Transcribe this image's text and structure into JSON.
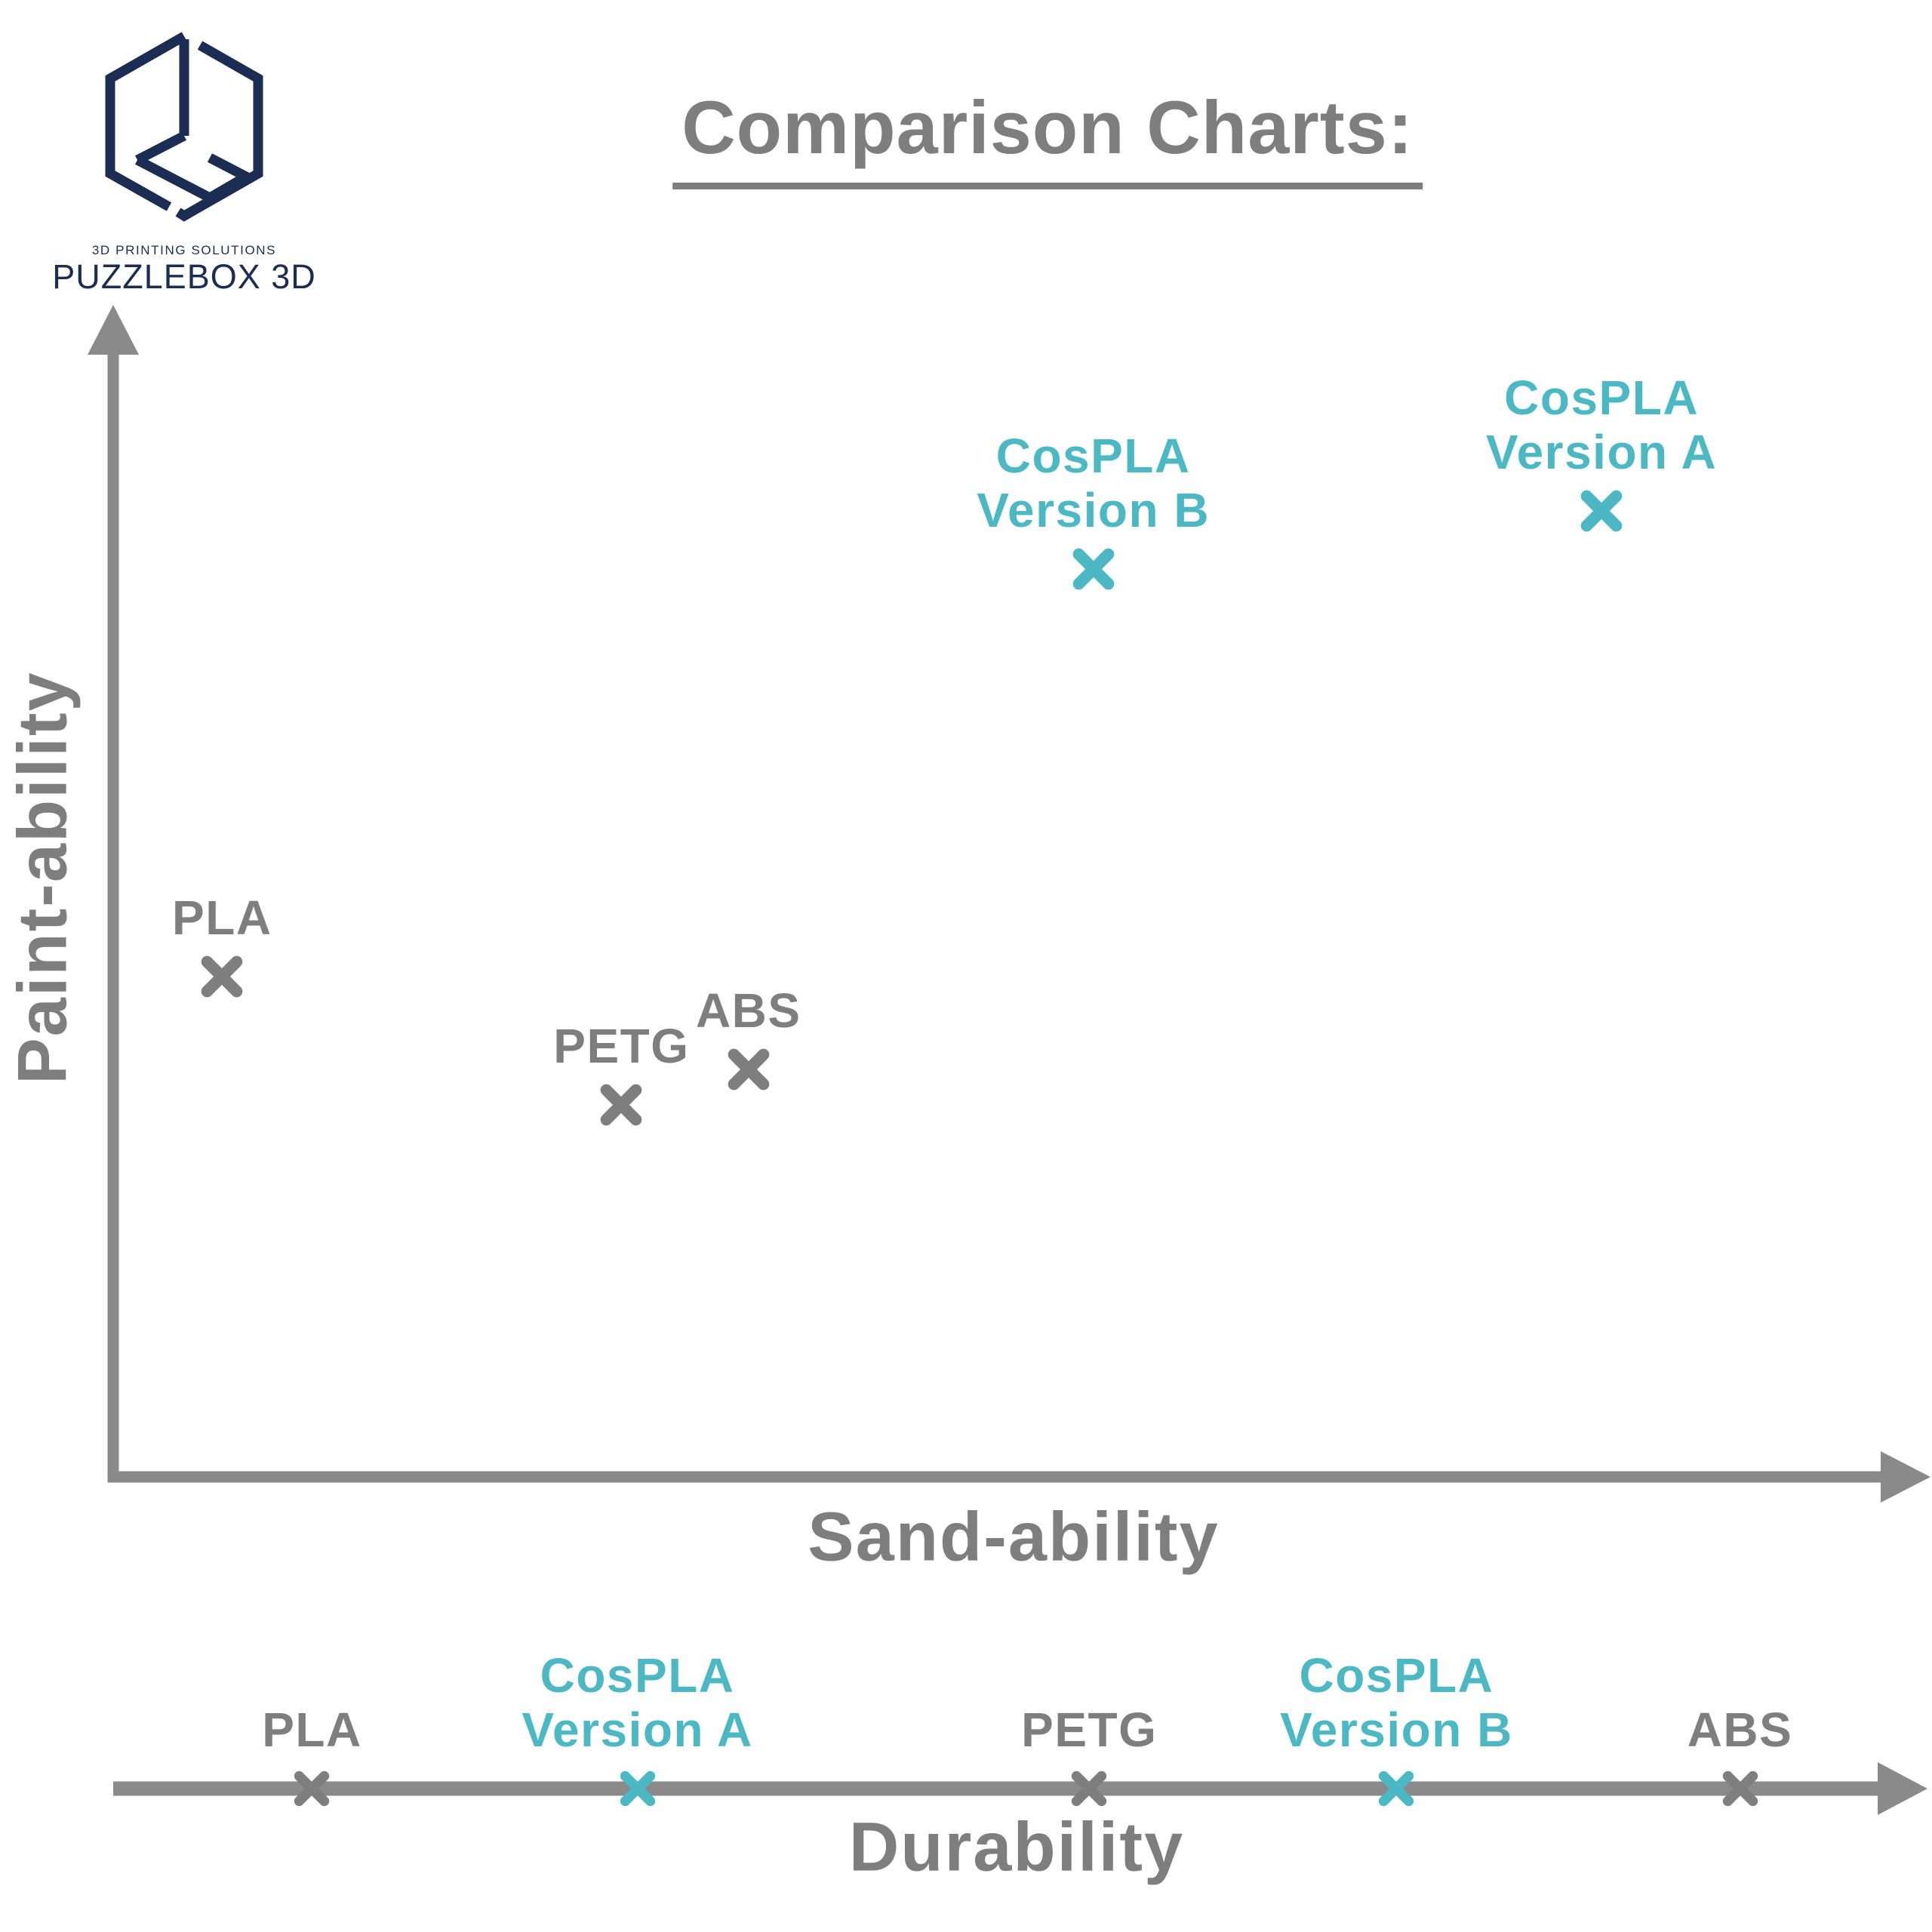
{
  "brand": {
    "tagline": "3D PRINTING SOLUTIONS",
    "name": "PUZZLEBOX 3D",
    "logo_color": "#1b2d52"
  },
  "title": "Comparison Charts:",
  "colors": {
    "text_gray": "#7e7e7e",
    "axis_gray": "#8a8a8a",
    "teal_accent": "#4cb8c4",
    "navy_logo": "#1b2d52",
    "background": "#ffffff"
  },
  "chart_data": [
    {
      "type": "scatter",
      "title": "",
      "xlabel": "Sand-ability",
      "ylabel": "Paint-ability",
      "marker": "x",
      "axis_style": "arrow axes, no ticks, no gridlines, qualitative estimated 0-10 scale",
      "xlim": [
        0,
        10
      ],
      "ylim": [
        0,
        10
      ],
      "points": [
        {
          "label": "PLA",
          "label_lines": [
            "PLA"
          ],
          "x": 0.6,
          "y": 4.3,
          "color": "gray"
        },
        {
          "label": "PETG",
          "label_lines": [
            "PETG"
          ],
          "x": 2.8,
          "y": 3.2,
          "color": "gray"
        },
        {
          "label": "ABS",
          "label_lines": [
            "ABS"
          ],
          "x": 3.5,
          "y": 3.5,
          "color": "gray"
        },
        {
          "label": "CosPLA Version B",
          "label_lines": [
            "CosPLA",
            "Version B"
          ],
          "x": 5.4,
          "y": 7.8,
          "color": "teal"
        },
        {
          "label": "CosPLA Version A",
          "label_lines": [
            "CosPLA",
            "Version A"
          ],
          "x": 8.2,
          "y": 8.3,
          "color": "teal"
        }
      ]
    },
    {
      "type": "scatter",
      "variant": "1d-number-line",
      "title": "",
      "xlabel": "Durability",
      "marker": "x",
      "axis_style": "single horizontal arrow line, no ticks, qualitative estimated 0-10 scale",
      "xlim": [
        0,
        10
      ],
      "points": [
        {
          "label": "PLA",
          "label_lines": [
            "PLA"
          ],
          "x": 1.1,
          "color": "gray"
        },
        {
          "label": "CosPLA Version A",
          "label_lines": [
            "CosPLA",
            "Version A"
          ],
          "x": 2.9,
          "color": "teal"
        },
        {
          "label": "PETG",
          "label_lines": [
            "PETG"
          ],
          "x": 5.4,
          "color": "gray"
        },
        {
          "label": "CosPLA Version B",
          "label_lines": [
            "CosPLA",
            "Version B"
          ],
          "x": 7.1,
          "color": "teal"
        },
        {
          "label": "ABS",
          "label_lines": [
            "ABS"
          ],
          "x": 9.0,
          "color": "gray"
        }
      ]
    }
  ]
}
